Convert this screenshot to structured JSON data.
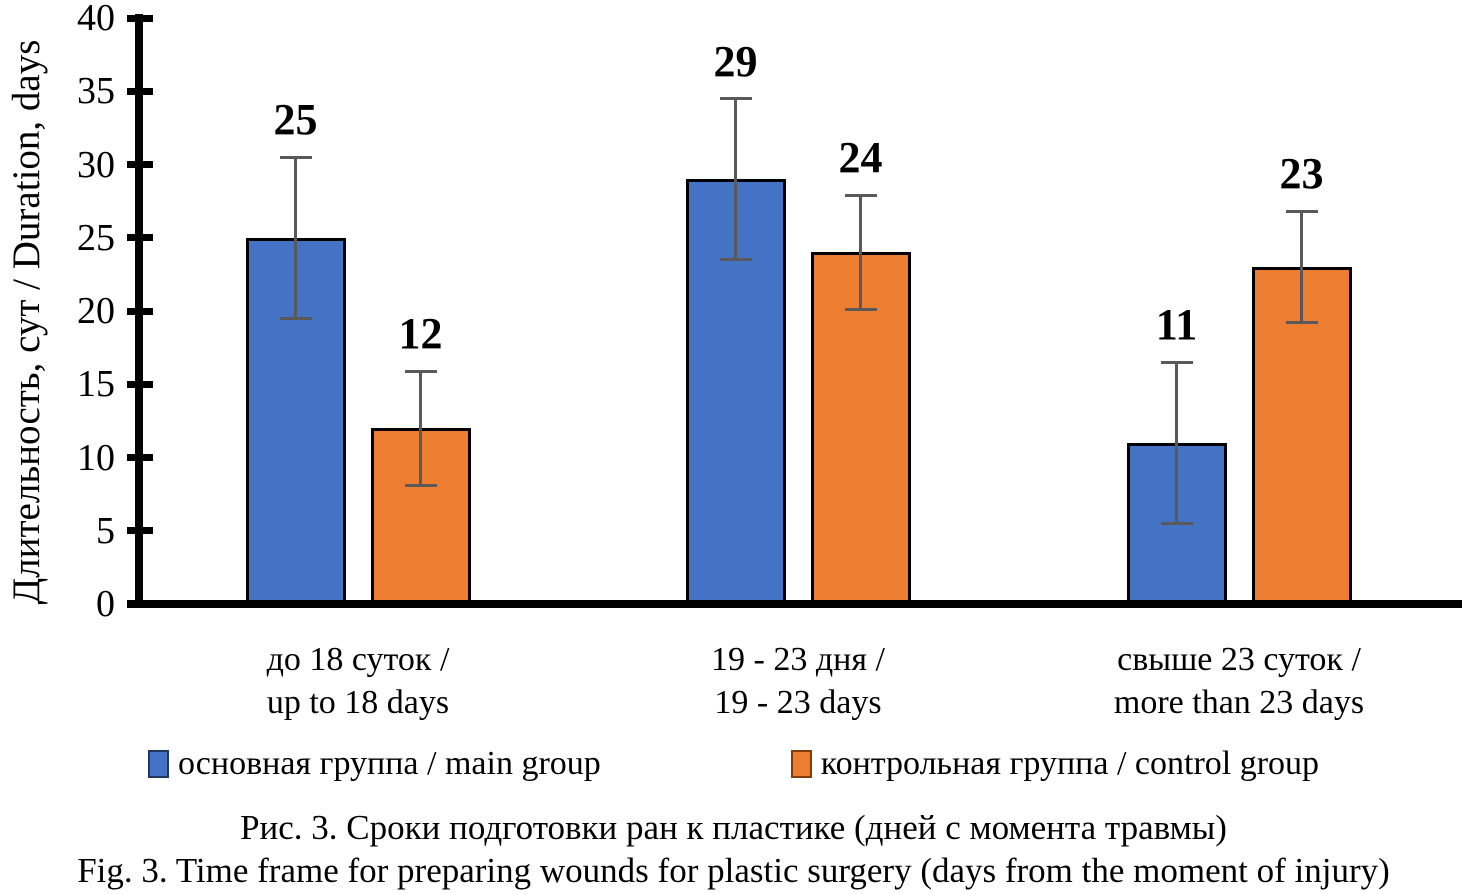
{
  "chart_data": {
    "type": "bar",
    "ylabel": "Длительность, сут / Duration, days",
    "ylim": [
      0,
      40
    ],
    "yticks": [
      0,
      5,
      10,
      15,
      20,
      25,
      30,
      35,
      40
    ],
    "grid": false,
    "legend_position": "bottom",
    "categories": [
      {
        "ru": "до 18 суток /",
        "en": "up to 18 days"
      },
      {
        "ru": "19 - 23 дня /",
        "en": "19 - 23 days"
      },
      {
        "ru": "свыше 23 суток /",
        "en": "more than 23 days"
      }
    ],
    "series": [
      {
        "name": "основная группа / main group",
        "color": "#4472C4",
        "values": [
          25,
          29,
          11
        ],
        "errors": [
          5.5,
          5.5,
          5.5
        ]
      },
      {
        "name": "контрольная группа / control group",
        "color": "#ED7D31",
        "values": [
          12,
          24,
          23
        ],
        "errors": [
          3.9,
          3.9,
          3.8
        ]
      }
    ],
    "error_bar_color": "#595959",
    "bar_border_color": "#000000",
    "title_ru": "Рис. 3. Сроки подготовки ран к пластике (дней с момента травмы)",
    "title_en": "Fig. 3. Time frame for preparing wounds for plastic surgery (days from the moment of injury)"
  }
}
